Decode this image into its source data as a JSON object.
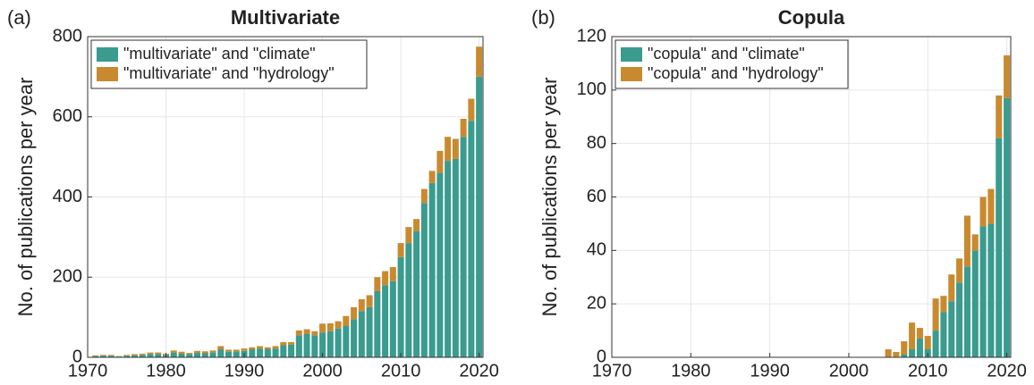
{
  "chart_data": [
    {
      "type": "bar",
      "stacked": true,
      "panel_label": "(a)",
      "title": "Multivariate",
      "ylabel": "No. of publications per year",
      "x": [
        1971,
        1972,
        1973,
        1974,
        1975,
        1976,
        1977,
        1978,
        1979,
        1980,
        1981,
        1982,
        1983,
        1984,
        1985,
        1986,
        1987,
        1988,
        1989,
        1990,
        1991,
        1992,
        1993,
        1994,
        1995,
        1996,
        1997,
        1998,
        1999,
        2000,
        2001,
        2002,
        2003,
        2004,
        2005,
        2006,
        2007,
        2008,
        2009,
        2010,
        2011,
        2012,
        2013,
        2014,
        2015,
        2016,
        2017,
        2018,
        2019,
        2020
      ],
      "series": [
        {
          "name": "\"multivariate\" and \"climate\"",
          "color": "#3a9b8f",
          "values": [
            3,
            4,
            4,
            2,
            4,
            5,
            6,
            8,
            8,
            6,
            12,
            9,
            8,
            11,
            10,
            12,
            20,
            14,
            15,
            16,
            20,
            22,
            20,
            22,
            30,
            32,
            55,
            58,
            55,
            62,
            65,
            72,
            78,
            95,
            115,
            125,
            165,
            180,
            190,
            250,
            285,
            315,
            385,
            435,
            460,
            490,
            495,
            550,
            590,
            700
          ]
        },
        {
          "name": "\"multivariate\" and \"hydrology\"",
          "color": "#c98a2f",
          "values": [
            2,
            2,
            2,
            1,
            2,
            3,
            3,
            4,
            4,
            3,
            5,
            5,
            3,
            5,
            5,
            5,
            8,
            5,
            4,
            6,
            5,
            6,
            5,
            6,
            8,
            6,
            12,
            12,
            10,
            22,
            20,
            18,
            25,
            30,
            30,
            30,
            35,
            35,
            35,
            35,
            40,
            30,
            35,
            30,
            55,
            60,
            50,
            45,
            55,
            75
          ]
        }
      ],
      "xlim": [
        1970,
        2020.5
      ],
      "xticks": [
        1970,
        1980,
        1990,
        2000,
        2010,
        2020
      ],
      "ylim": [
        0,
        800
      ],
      "yticks": [
        0,
        200,
        400,
        600,
        800
      ],
      "grid": true,
      "legend": "upper left"
    },
    {
      "type": "bar",
      "stacked": true,
      "panel_label": "(b)",
      "title": "Copula",
      "ylabel": "No. of publications per year",
      "x": [
        2005,
        2006,
        2007,
        2008,
        2009,
        2010,
        2011,
        2012,
        2013,
        2014,
        2015,
        2016,
        2017,
        2018,
        2019,
        2020
      ],
      "series": [
        {
          "name": "\"copula\" and \"climate\"",
          "color": "#3a9b8f",
          "values": [
            0,
            0,
            1,
            3,
            7,
            3,
            10,
            17,
            21,
            28,
            34,
            40,
            49,
            50,
            82,
            97
          ]
        },
        {
          "name": "\"copula\" and \"hydrology\"",
          "color": "#c98a2f",
          "values": [
            3,
            2,
            5,
            10,
            4,
            5,
            12,
            6,
            10,
            9,
            19,
            6,
            11,
            13,
            16,
            16
          ]
        }
      ],
      "xlim": [
        1970,
        2020.5
      ],
      "xticks": [
        1970,
        1980,
        1990,
        2000,
        2010,
        2020
      ],
      "ylim": [
        0,
        120
      ],
      "yticks": [
        0,
        20,
        40,
        60,
        80,
        100,
        120
      ],
      "grid": true,
      "legend": "upper left"
    }
  ]
}
